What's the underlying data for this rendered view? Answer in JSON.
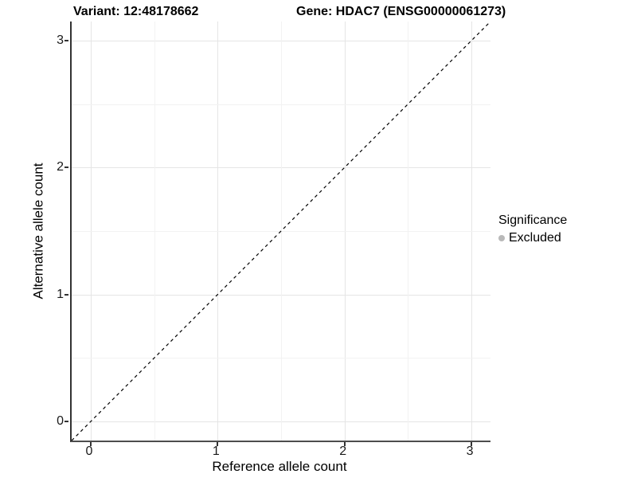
{
  "chart_data": {
    "type": "scatter",
    "title_left": "Variant: 12:48178662",
    "title_right": "Gene: HDAC7 (ENSG00000061273)",
    "xlabel": "Reference allele count",
    "ylabel": "Alternative allele count",
    "x_ticks": [
      0,
      1,
      2,
      3
    ],
    "y_ticks": [
      0,
      1,
      2,
      3
    ],
    "x_minor_ticks": [
      0.5,
      1.5,
      2.5
    ],
    "y_minor_ticks": [
      0.5,
      1.5,
      2.5
    ],
    "xlim": [
      -0.15,
      3.15
    ],
    "ylim": [
      -0.15,
      3.15
    ],
    "points": [],
    "series": [
      {
        "name": "Excluded",
        "values": []
      }
    ],
    "identity_line": {
      "style": "dashed",
      "color": "#000000",
      "from": [
        -0.15,
        -0.15
      ],
      "to": [
        3.15,
        3.15
      ]
    },
    "grid": {
      "on": true,
      "major_color": "#e5e5e5",
      "minor_color": "#f2f2f2"
    },
    "legend": {
      "title": "Significance",
      "position": "right",
      "items": [
        {
          "label": "Excluded",
          "color": "#b9b9b9",
          "marker": "circle"
        }
      ]
    }
  }
}
